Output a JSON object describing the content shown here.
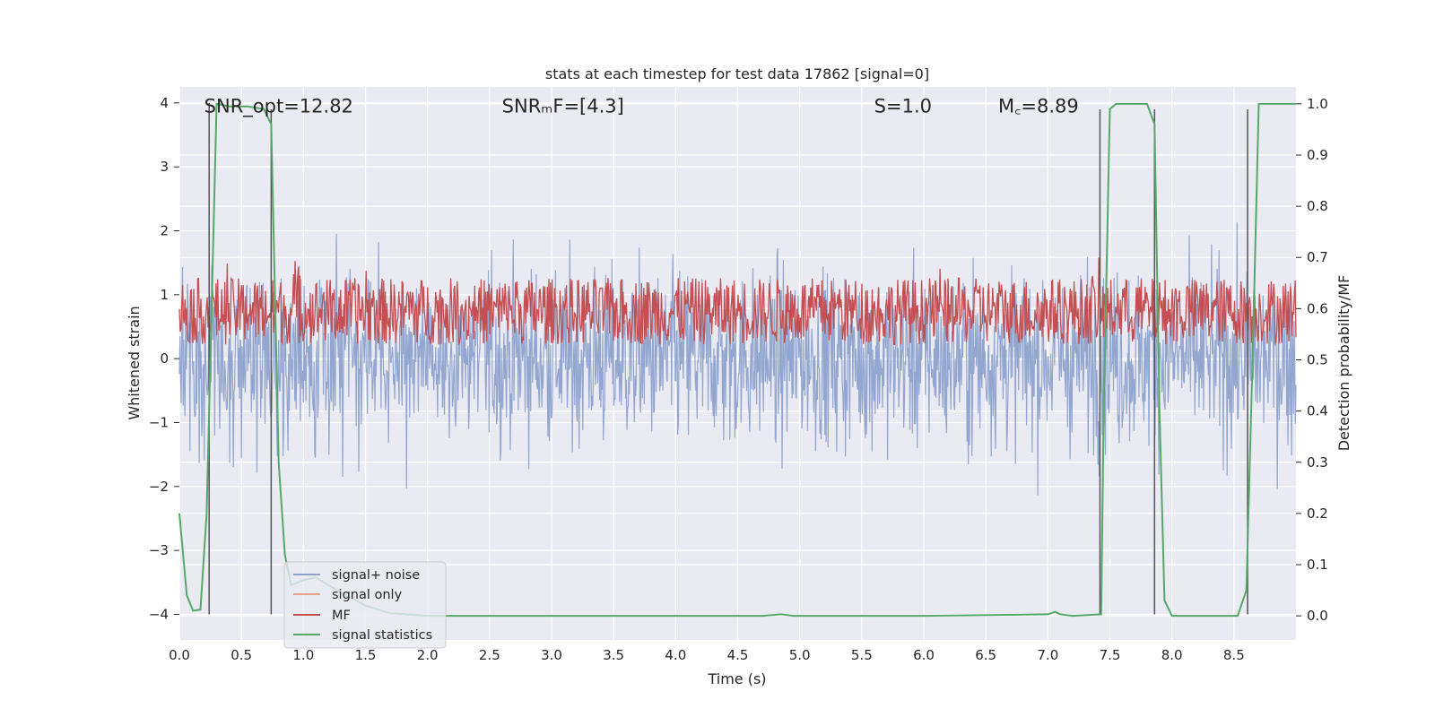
{
  "chart_data": {
    "type": "line",
    "title": "stats at each timestep for test data 17862 [signal=0]",
    "xlabel": "Time (s)",
    "ylabel": "Whitened strain",
    "y2label": "Detection probability/MF",
    "xlim": [
      0,
      9.0
    ],
    "ylim": [
      -4.4,
      4.25
    ],
    "y2lim": [
      -0.047,
      1.033
    ],
    "xticks": [
      "0.0",
      "0.5",
      "1.0",
      "1.5",
      "2.0",
      "2.5",
      "3.0",
      "3.5",
      "4.0",
      "4.5",
      "5.0",
      "5.5",
      "6.0",
      "6.5",
      "7.0",
      "7.5",
      "8.0",
      "8.5"
    ],
    "xtick_values": [
      0,
      0.5,
      1.0,
      1.5,
      2.0,
      2.5,
      3.0,
      3.5,
      4.0,
      4.5,
      5.0,
      5.5,
      6.0,
      6.5,
      7.0,
      7.5,
      8.0,
      8.5
    ],
    "yticks": [
      "4",
      "3",
      "2",
      "1",
      "0",
      "−1",
      "−2",
      "−3",
      "−4"
    ],
    "ytick_values": [
      4,
      3,
      2,
      1,
      0,
      -1,
      -2,
      -3,
      -4
    ],
    "y2ticks": [
      "1.0",
      "0.9",
      "0.8",
      "0.7",
      "0.6",
      "0.5",
      "0.4",
      "0.3",
      "0.2",
      "0.1",
      "0.0"
    ],
    "y2tick_values": [
      1.0,
      0.9,
      0.8,
      0.7,
      0.6,
      0.5,
      0.4,
      0.3,
      0.2,
      0.1,
      0.0
    ],
    "grid": true,
    "legend_position": "lower-left",
    "annotations": [
      {
        "x": 0.2,
        "y": 3.95,
        "text": "SNR_opt=12.82"
      },
      {
        "x": 2.6,
        "y": 3.95,
        "text": "SNRₘF=[4.3]"
      },
      {
        "x": 5.6,
        "y": 3.95,
        "text": "S=1.0"
      },
      {
        "x": 6.6,
        "y": 3.95,
        "text": "M꜀=8.89"
      }
    ],
    "series": [
      {
        "name": "signal+ noise",
        "color": "#8da2cd",
        "style": "dense noise, amplitude about ±2 (peaks ~3.5–4)"
      },
      {
        "name": "signal only",
        "color": "#e8a08c",
        "values": []
      },
      {
        "name": "MF",
        "color": "#c44e52",
        "style": "dense band between 0.0 and 0.7, peak ~1.0"
      },
      {
        "name": "signal statistics",
        "color": "#55a868",
        "axis": "right",
        "x": [
          0.0,
          0.06,
          0.11,
          0.17,
          0.22,
          0.3,
          0.4,
          0.55,
          0.68,
          0.74,
          0.8,
          0.85,
          0.9,
          1.0,
          1.1,
          1.2,
          1.35,
          1.5,
          1.7,
          2.0,
          2.5,
          3.0,
          4.0,
          4.7,
          4.85,
          4.95,
          5.5,
          6.0,
          7.0,
          7.06,
          7.1,
          7.2,
          7.43,
          7.45,
          7.5,
          7.55,
          7.6,
          7.8,
          7.86,
          7.9,
          7.94,
          8.0,
          8.2,
          8.4,
          8.53,
          8.6,
          8.65,
          8.7,
          8.8,
          9.0
        ],
        "y": [
          0.2,
          0.04,
          0.01,
          0.012,
          0.2,
          1.0,
          0.995,
          0.995,
          0.99,
          0.96,
          0.3,
          0.12,
          0.06,
          0.07,
          0.075,
          0.06,
          0.04,
          0.02,
          0.005,
          0.0,
          0.0,
          0.0,
          0.0,
          0.0,
          0.003,
          0.0,
          0.0,
          0.0,
          0.003,
          0.008,
          0.003,
          0.0,
          0.003,
          0.4,
          0.99,
          1.0,
          1.0,
          1.0,
          0.96,
          0.4,
          0.03,
          0.0,
          0.0,
          0.0,
          0.0,
          0.05,
          0.5,
          1.0,
          1.0,
          1.0
        ]
      }
    ],
    "vertical_markers": [
      0.24,
      0.74,
      7.42,
      7.86,
      8.61
    ]
  }
}
